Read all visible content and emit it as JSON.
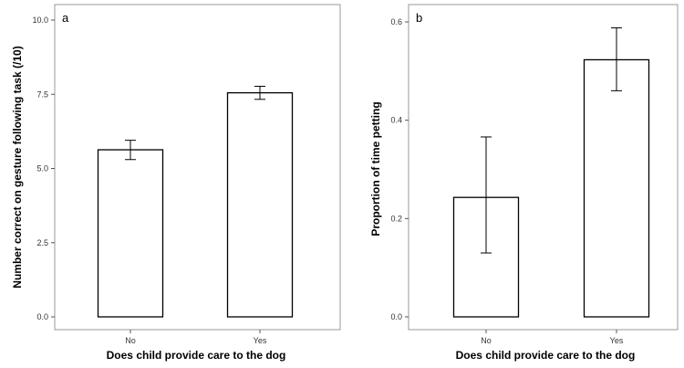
{
  "chart_data": [
    {
      "type": "bar",
      "panel_label": "a",
      "categories": [
        "No",
        "Yes"
      ],
      "values": [
        5.63,
        7.55
      ],
      "error_low": [
        5.3,
        7.33
      ],
      "error_high": [
        5.95,
        7.77
      ],
      "xlabel": "Does child provide care to the dog",
      "ylabel": "Number correct on gesture following task (/10)",
      "ylim": [
        0,
        10
      ],
      "yticks": [
        "0.0",
        "2.5",
        "5.0",
        "7.5",
        "10.0"
      ],
      "grid": false,
      "bar_fill": "#ffffff",
      "bar_stroke": "#000000"
    },
    {
      "type": "bar",
      "panel_label": "b",
      "categories": [
        "No",
        "Yes"
      ],
      "values": [
        0.243,
        0.523
      ],
      "error_low": [
        0.13,
        0.46
      ],
      "error_high": [
        0.366,
        0.588
      ],
      "xlabel": "Does child provide care to the dog",
      "ylabel": "Proportion of time petting",
      "ylim": [
        0,
        0.6
      ],
      "yticks": [
        "0.0",
        "0.2",
        "0.4",
        "0.6"
      ],
      "grid": false,
      "bar_fill": "#ffffff",
      "bar_stroke": "#000000"
    }
  ]
}
